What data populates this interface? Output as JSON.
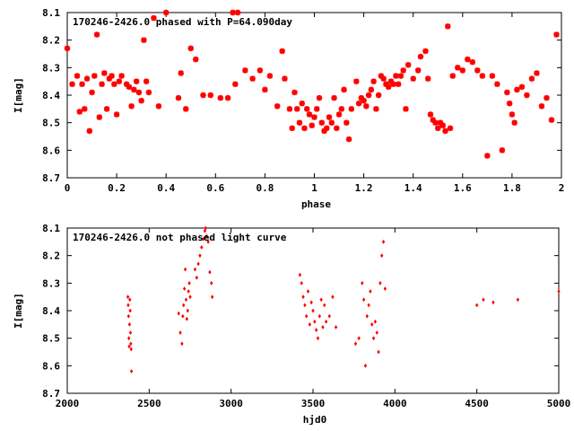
{
  "chart_data": [
    {
      "type": "scatter",
      "title": "170246-2426.0 phased with P=64.090day",
      "xlabel": "phase",
      "ylabel": "I[mag]",
      "xlim": [
        0,
        2
      ],
      "ylim": [
        8.1,
        8.7
      ],
      "y_inverted": true,
      "grid": false,
      "legend": "none",
      "xticks": [
        "0",
        "0.2",
        "0.4",
        "0.6",
        "0.8",
        "1",
        "1.2",
        "1.4",
        "1.6",
        "1.8",
        "2"
      ],
      "yticks": [
        "8.1",
        "8.2",
        "8.3",
        "8.4",
        "8.5",
        "8.6",
        "8.7"
      ],
      "color": "#ff0000",
      "points": [
        [
          0.0,
          8.23
        ],
        [
          0.02,
          8.36
        ],
        [
          0.04,
          8.33
        ],
        [
          0.05,
          8.46
        ],
        [
          0.06,
          8.36
        ],
        [
          0.07,
          8.45
        ],
        [
          0.08,
          8.34
        ],
        [
          0.09,
          8.53
        ],
        [
          0.1,
          8.39
        ],
        [
          0.11,
          8.33
        ],
        [
          0.12,
          8.18
        ],
        [
          0.13,
          8.48
        ],
        [
          0.14,
          8.36
        ],
        [
          0.15,
          8.32
        ],
        [
          0.16,
          8.45
        ],
        [
          0.17,
          8.34
        ],
        [
          0.18,
          8.33
        ],
        [
          0.19,
          8.36
        ],
        [
          0.2,
          8.47
        ],
        [
          0.21,
          8.35
        ],
        [
          0.22,
          8.33
        ],
        [
          0.24,
          8.36
        ],
        [
          0.25,
          8.37
        ],
        [
          0.26,
          8.44
        ],
        [
          0.27,
          8.38
        ],
        [
          0.28,
          8.35
        ],
        [
          0.29,
          8.39
        ],
        [
          0.3,
          8.42
        ],
        [
          0.31,
          8.2
        ],
        [
          0.32,
          8.35
        ],
        [
          0.33,
          8.39
        ],
        [
          0.35,
          8.12
        ],
        [
          0.37,
          8.44
        ],
        [
          0.4,
          8.1
        ],
        [
          0.45,
          8.41
        ],
        [
          0.46,
          8.32
        ],
        [
          0.48,
          8.45
        ],
        [
          0.5,
          8.23
        ],
        [
          0.52,
          8.27
        ],
        [
          0.55,
          8.4
        ],
        [
          0.58,
          8.4
        ],
        [
          0.62,
          8.41
        ],
        [
          0.65,
          8.41
        ],
        [
          0.67,
          8.1
        ],
        [
          0.68,
          8.36
        ],
        [
          0.69,
          8.1
        ],
        [
          0.72,
          8.31
        ],
        [
          0.75,
          8.34
        ],
        [
          0.78,
          8.31
        ],
        [
          0.8,
          8.38
        ],
        [
          0.82,
          8.33
        ],
        [
          0.85,
          8.44
        ],
        [
          0.87,
          8.24
        ],
        [
          0.88,
          8.34
        ],
        [
          0.9,
          8.45
        ],
        [
          0.91,
          8.52
        ],
        [
          0.92,
          8.39
        ],
        [
          0.93,
          8.45
        ],
        [
          0.94,
          8.5
        ],
        [
          0.95,
          8.43
        ],
        [
          0.96,
          8.52
        ],
        [
          0.97,
          8.45
        ],
        [
          0.98,
          8.47
        ],
        [
          0.99,
          8.51
        ],
        [
          1.0,
          8.48
        ],
        [
          1.01,
          8.45
        ],
        [
          1.02,
          8.41
        ],
        [
          1.03,
          8.5
        ],
        [
          1.04,
          8.53
        ],
        [
          1.05,
          8.52
        ],
        [
          1.06,
          8.48
        ],
        [
          1.07,
          8.5
        ],
        [
          1.08,
          8.41
        ],
        [
          1.09,
          8.52
        ],
        [
          1.1,
          8.47
        ],
        [
          1.11,
          8.45
        ],
        [
          1.12,
          8.38
        ],
        [
          1.13,
          8.5
        ],
        [
          1.14,
          8.56
        ],
        [
          1.15,
          8.45
        ],
        [
          1.17,
          8.35
        ],
        [
          1.18,
          8.43
        ],
        [
          1.19,
          8.41
        ],
        [
          1.2,
          8.42
        ],
        [
          1.21,
          8.44
        ],
        [
          1.22,
          8.4
        ],
        [
          1.23,
          8.38
        ],
        [
          1.24,
          8.35
        ],
        [
          1.25,
          8.45
        ],
        [
          1.26,
          8.4
        ],
        [
          1.27,
          8.33
        ],
        [
          1.28,
          8.34
        ],
        [
          1.29,
          8.36
        ],
        [
          1.3,
          8.37
        ],
        [
          1.31,
          8.35
        ],
        [
          1.32,
          8.36
        ],
        [
          1.33,
          8.33
        ],
        [
          1.34,
          8.36
        ],
        [
          1.35,
          8.33
        ],
        [
          1.36,
          8.31
        ],
        [
          1.37,
          8.45
        ],
        [
          1.38,
          8.29
        ],
        [
          1.4,
          8.34
        ],
        [
          1.42,
          8.31
        ],
        [
          1.43,
          8.26
        ],
        [
          1.45,
          8.24
        ],
        [
          1.46,
          8.34
        ],
        [
          1.47,
          8.47
        ],
        [
          1.48,
          8.49
        ],
        [
          1.49,
          8.5
        ],
        [
          1.5,
          8.52
        ],
        [
          1.51,
          8.5
        ],
        [
          1.52,
          8.51
        ],
        [
          1.53,
          8.53
        ],
        [
          1.54,
          8.15
        ],
        [
          1.55,
          8.52
        ],
        [
          1.56,
          8.33
        ],
        [
          1.58,
          8.3
        ],
        [
          1.6,
          8.31
        ],
        [
          1.62,
          8.27
        ],
        [
          1.64,
          8.28
        ],
        [
          1.66,
          8.31
        ],
        [
          1.68,
          8.33
        ],
        [
          1.7,
          8.62
        ],
        [
          1.72,
          8.33
        ],
        [
          1.74,
          8.36
        ],
        [
          1.76,
          8.6
        ],
        [
          1.78,
          8.39
        ],
        [
          1.79,
          8.43
        ],
        [
          1.8,
          8.47
        ],
        [
          1.81,
          8.5
        ],
        [
          1.82,
          8.38
        ],
        [
          1.84,
          8.37
        ],
        [
          1.86,
          8.4
        ],
        [
          1.88,
          8.34
        ],
        [
          1.9,
          8.32
        ],
        [
          1.92,
          8.44
        ],
        [
          1.94,
          8.41
        ],
        [
          1.96,
          8.49
        ],
        [
          1.98,
          8.18
        ]
      ]
    },
    {
      "type": "scatter",
      "title": "170246-2426.0 not phased light curve",
      "xlabel": "hjd0",
      "ylabel": "I[mag]",
      "xlim": [
        2000,
        5000
      ],
      "ylim": [
        8.1,
        8.7
      ],
      "y_inverted": true,
      "grid": false,
      "legend": "none",
      "xticks": [
        "2000",
        "2500",
        "3000",
        "3500",
        "4000",
        "4500",
        "5000"
      ],
      "yticks": [
        "8.1",
        "8.2",
        "8.3",
        "8.4",
        "8.5",
        "8.6",
        "8.7"
      ],
      "color": "#ff0000",
      "points": [
        [
          2370,
          8.35
        ],
        [
          2372,
          8.38
        ],
        [
          2374,
          8.42
        ],
        [
          2376,
          8.5
        ],
        [
          2378,
          8.53
        ],
        [
          2380,
          8.45
        ],
        [
          2382,
          8.36
        ],
        [
          2384,
          8.4
        ],
        [
          2386,
          8.48
        ],
        [
          2388,
          8.52
        ],
        [
          2390,
          8.54
        ],
        [
          2392,
          8.62
        ],
        [
          2680,
          8.41
        ],
        [
          2690,
          8.48
        ],
        [
          2700,
          8.52
        ],
        [
          2705,
          8.42
        ],
        [
          2710,
          8.38
        ],
        [
          2715,
          8.32
        ],
        [
          2720,
          8.25
        ],
        [
          2725,
          8.36
        ],
        [
          2730,
          8.43
        ],
        [
          2735,
          8.4
        ],
        [
          2740,
          8.33
        ],
        [
          2745,
          8.3
        ],
        [
          2750,
          8.35
        ],
        [
          2780,
          8.25
        ],
        [
          2790,
          8.28
        ],
        [
          2800,
          8.23
        ],
        [
          2810,
          8.2
        ],
        [
          2820,
          8.17
        ],
        [
          2830,
          8.14
        ],
        [
          2840,
          8.11
        ],
        [
          2845,
          8.1
        ],
        [
          2850,
          8.13
        ],
        [
          2860,
          8.15
        ],
        [
          2870,
          8.26
        ],
        [
          2880,
          8.3
        ],
        [
          2885,
          8.35
        ],
        [
          3420,
          8.27
        ],
        [
          3430,
          8.3
        ],
        [
          3440,
          8.35
        ],
        [
          3450,
          8.38
        ],
        [
          3460,
          8.42
        ],
        [
          3470,
          8.33
        ],
        [
          3480,
          8.45
        ],
        [
          3490,
          8.37
        ],
        [
          3500,
          8.4
        ],
        [
          3510,
          8.44
        ],
        [
          3520,
          8.47
        ],
        [
          3530,
          8.5
        ],
        [
          3540,
          8.42
        ],
        [
          3550,
          8.36
        ],
        [
          3560,
          8.46
        ],
        [
          3570,
          8.38
        ],
        [
          3580,
          8.44
        ],
        [
          3600,
          8.42
        ],
        [
          3620,
          8.35
        ],
        [
          3640,
          8.46
        ],
        [
          3760,
          8.52
        ],
        [
          3780,
          8.5
        ],
        [
          3800,
          8.3
        ],
        [
          3810,
          8.36
        ],
        [
          3820,
          8.6
        ],
        [
          3830,
          8.42
        ],
        [
          3840,
          8.38
        ],
        [
          3850,
          8.33
        ],
        [
          3860,
          8.45
        ],
        [
          3870,
          8.5
        ],
        [
          3880,
          8.44
        ],
        [
          3890,
          8.48
        ],
        [
          3900,
          8.55
        ],
        [
          3910,
          8.3
        ],
        [
          3920,
          8.2
        ],
        [
          3930,
          8.15
        ],
        [
          3940,
          8.32
        ],
        [
          4500,
          8.38
        ],
        [
          4540,
          8.36
        ],
        [
          4600,
          8.37
        ],
        [
          4750,
          8.36
        ],
        [
          5000,
          8.33
        ]
      ]
    }
  ]
}
